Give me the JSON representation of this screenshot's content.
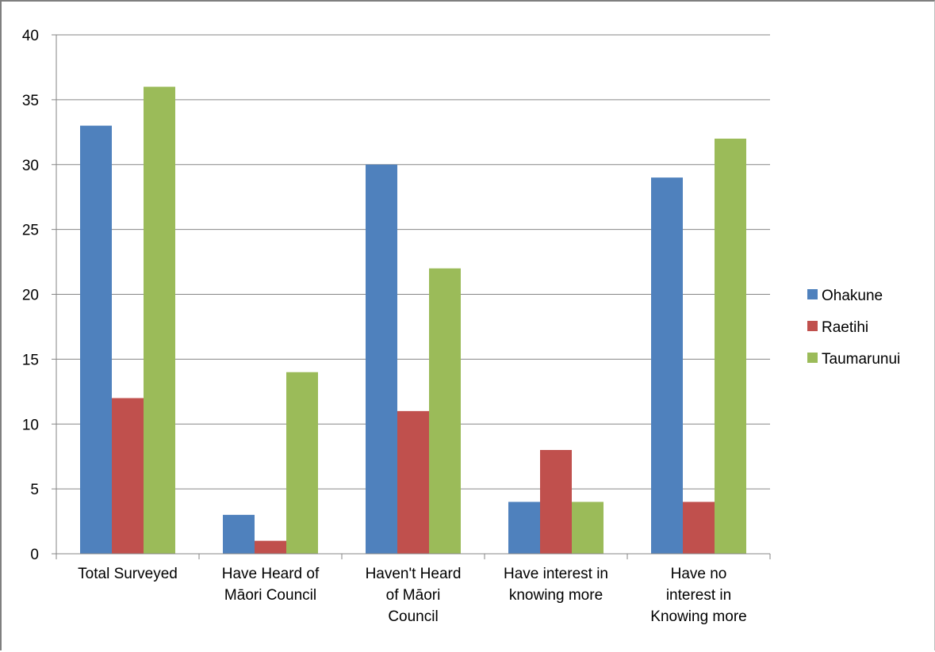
{
  "chart_data": {
    "type": "bar",
    "categories": [
      [
        "Total Surveyed"
      ],
      [
        "Have Heard of",
        "Māori Council"
      ],
      [
        "Haven't Heard",
        "of Māori",
        "Council"
      ],
      [
        "Have interest in",
        "knowing more"
      ],
      [
        "Have no",
        "interest in",
        "Knowing more"
      ]
    ],
    "series": [
      {
        "name": "Ohakune",
        "color": "#4f81bd",
        "values": [
          33,
          3,
          30,
          4,
          29
        ]
      },
      {
        "name": "Raetihi",
        "color": "#c0504d",
        "values": [
          12,
          1,
          11,
          8,
          4
        ]
      },
      {
        "name": "Taumarunui",
        "color": "#9bbb59",
        "values": [
          36,
          14,
          22,
          4,
          32
        ]
      }
    ],
    "ylim": [
      0,
      40
    ],
    "yticks": [
      0,
      5,
      10,
      15,
      20,
      25,
      30,
      35,
      40
    ],
    "grid": true,
    "legend": "right"
  }
}
